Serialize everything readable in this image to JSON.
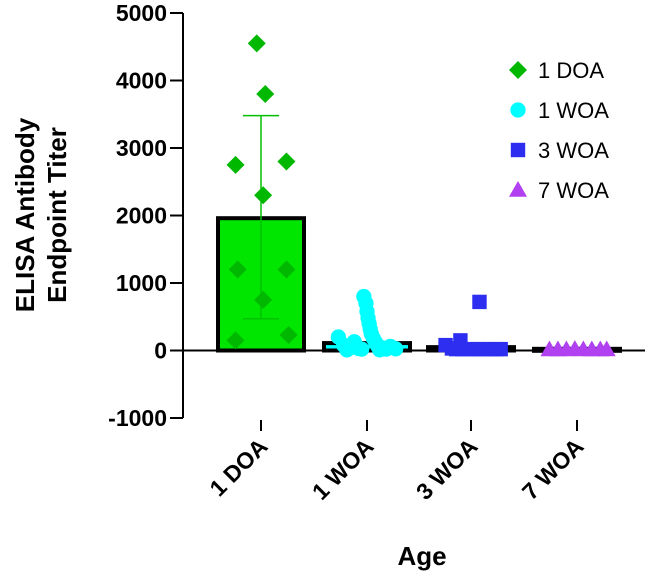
{
  "chart_data": {
    "type": "bar",
    "title": "",
    "xlabel": "Age",
    "ylabel_lines": [
      "ELISA Antibody",
      "Endpoint Titer"
    ],
    "ylim": [
      -1000,
      5000
    ],
    "yticks": [
      -1000,
      0,
      1000,
      2000,
      3000,
      4000,
      5000
    ],
    "categories": [
      "1 DOA",
      "1 WOA",
      "3 WOA",
      "7 WOA"
    ],
    "bars": [
      {
        "category": "1 DOA",
        "mean": 1960,
        "error_low": 470,
        "error_high": 3480,
        "color": "#00E600",
        "marker": "diamond"
      },
      {
        "category": "1 WOA",
        "mean": 110,
        "error_low": 110,
        "error_high": 110,
        "color": "#00FFFF",
        "marker": "circle"
      },
      {
        "category": "3 WOA",
        "mean": 50,
        "error_low": 50,
        "error_high": 50,
        "color": "#2E2EF0",
        "marker": "square"
      },
      {
        "category": "7 WOA",
        "mean": 25,
        "error_low": 25,
        "error_high": 25,
        "color": "#B040F0",
        "marker": "triangle"
      }
    ],
    "points": {
      "1 DOA": [
        {
          "offset": -0.04,
          "value": 4550
        },
        {
          "offset": 0.04,
          "value": 3800
        },
        {
          "offset": -0.24,
          "value": 2750
        },
        {
          "offset": 0.24,
          "value": 2800
        },
        {
          "offset": 0.02,
          "value": 2300
        },
        {
          "offset": -0.22,
          "value": 1200
        },
        {
          "offset": 0.24,
          "value": 1200
        },
        {
          "offset": 0.02,
          "value": 750
        },
        {
          "offset": -0.24,
          "value": 150
        },
        {
          "offset": 0.26,
          "value": 230
        }
      ],
      "1 WOA": [
        {
          "offset": -0.27,
          "value": 200
        },
        {
          "offset": -0.22,
          "value": 80
        },
        {
          "offset": -0.16,
          "value": 40
        },
        {
          "offset": -0.12,
          "value": 130
        },
        {
          "offset": -0.08,
          "value": 30
        },
        {
          "offset": -0.03,
          "value": 800
        },
        {
          "offset": -0.01,
          "value": 700
        },
        {
          "offset": 0.0,
          "value": 580
        },
        {
          "offset": 0.01,
          "value": 480
        },
        {
          "offset": 0.02,
          "value": 400
        },
        {
          "offset": 0.03,
          "value": 320
        },
        {
          "offset": 0.04,
          "value": 250
        },
        {
          "offset": 0.06,
          "value": 180
        },
        {
          "offset": 0.08,
          "value": 120
        },
        {
          "offset": 0.1,
          "value": 70
        },
        {
          "offset": 0.14,
          "value": 40
        },
        {
          "offset": 0.18,
          "value": 20
        },
        {
          "offset": 0.22,
          "value": 60
        },
        {
          "offset": 0.27,
          "value": 25
        },
        {
          "offset": -0.05,
          "value": 20
        },
        {
          "offset": 0.12,
          "value": 10
        },
        {
          "offset": -0.19,
          "value": 10
        }
      ],
      "3 WOA": [
        {
          "offset": 0.08,
          "value": 720
        },
        {
          "offset": -0.1,
          "value": 150
        },
        {
          "offset": -0.24,
          "value": 80
        },
        {
          "offset": -0.18,
          "value": 30
        },
        {
          "offset": -0.08,
          "value": 20
        },
        {
          "offset": 0.0,
          "value": 20
        },
        {
          "offset": 0.06,
          "value": 20
        },
        {
          "offset": 0.12,
          "value": 20
        },
        {
          "offset": 0.18,
          "value": 20
        },
        {
          "offset": 0.24,
          "value": 20
        },
        {
          "offset": -0.14,
          "value": 20
        },
        {
          "offset": 0.28,
          "value": 20
        }
      ],
      "7 WOA": [
        {
          "offset": -0.26,
          "value": 15
        },
        {
          "offset": -0.18,
          "value": 15
        },
        {
          "offset": -0.1,
          "value": 15
        },
        {
          "offset": -0.02,
          "value": 20
        },
        {
          "offset": 0.06,
          "value": 15
        },
        {
          "offset": 0.14,
          "value": 15
        },
        {
          "offset": 0.22,
          "value": 15
        },
        {
          "offset": 0.28,
          "value": 15
        }
      ]
    },
    "legend": [
      {
        "label": "1 DOA",
        "marker": "diamond",
        "color": "#00B800"
      },
      {
        "label": "1 WOA",
        "marker": "circle",
        "color": "#00FFFF"
      },
      {
        "label": "3 WOA",
        "marker": "square",
        "color": "#2E2EF0"
      },
      {
        "label": "7 WOA",
        "marker": "triangle",
        "color": "#B040F0"
      }
    ],
    "legend_position": "top-right",
    "marker_colors": {
      "1 DOA": "#00B800",
      "1 WOA": "#00FFFF",
      "3 WOA": "#2E2EF0",
      "7 WOA": "#B040F0"
    },
    "error_bar_color": "#00C000"
  }
}
